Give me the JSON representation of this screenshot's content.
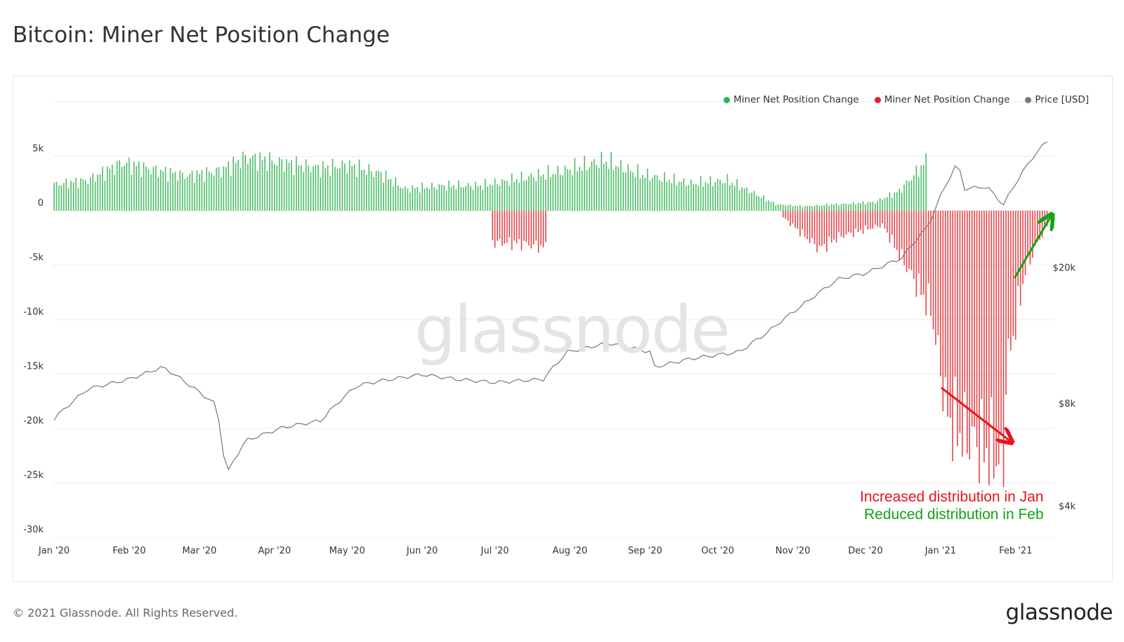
{
  "header": {
    "title": "Bitcoin: Miner Net Position Change"
  },
  "footer": {
    "copyright": "© 2021 Glassnode. All Rights Reserved.",
    "brand": "glassnode"
  },
  "watermark": "glassnode",
  "legend": [
    {
      "label": "Miner Net Position Change",
      "color": "#2bb24c"
    },
    {
      "label": "Miner Net Position Change",
      "color": "#e0252b"
    },
    {
      "label": "Price [USD]",
      "color": "#777777"
    }
  ],
  "annotations": {
    "line1": "Increased distribution in Jan",
    "line2": "Reduced distribution in Feb",
    "line1_color": "#e8141b",
    "line2_color": "#13a313"
  },
  "chart_data": {
    "type": "bar",
    "title": "Bitcoin: Miner Net Position Change",
    "x_ticks": [
      "Jan '20",
      "Feb '20",
      "Mar '20",
      "Apr '20",
      "May '20",
      "Jun '20",
      "Jul '20",
      "Aug '20",
      "Sep '20",
      "Oct '20",
      "Nov '20",
      "Dec '20",
      "Jan '21",
      "Feb '21"
    ],
    "y_ticks": [
      "5k",
      "0",
      "-5k",
      "-10k",
      "-15k",
      "-20k",
      "-25k",
      "-30k"
    ],
    "y_tick_values": [
      5000,
      0,
      -5000,
      -10000,
      -15000,
      -20000,
      -25000,
      -30000
    ],
    "ylim": [
      -30000,
      7500
    ],
    "y2_ticks": [
      "$20k",
      "$8k",
      "$4k"
    ],
    "y2_tick_values": [
      20000,
      8000,
      4000
    ],
    "y2_scale": "log",
    "y2lim": [
      4000,
      50000
    ],
    "grid": true,
    "legend_position": "top-right",
    "series": [
      {
        "name": "Miner Net Position Change",
        "color": "#2bb24c",
        "points": [
          [
            "2020-01-01",
            2400
          ],
          [
            "2020-01-15",
            2800
          ],
          [
            "2020-01-29",
            4400
          ],
          [
            "2020-02-10",
            3800
          ],
          [
            "2020-02-25",
            3200
          ],
          [
            "2020-03-10",
            3700
          ],
          [
            "2020-03-20",
            4900
          ],
          [
            "2020-04-05",
            4400
          ],
          [
            "2020-04-20",
            3900
          ],
          [
            "2020-05-01",
            4200
          ],
          [
            "2020-05-15",
            3400
          ],
          [
            "2020-05-25",
            2000
          ],
          [
            "2020-06-10",
            2300
          ],
          [
            "2020-06-25",
            2300
          ],
          [
            "2020-07-28",
            3600
          ],
          [
            "2020-08-15",
            4600
          ],
          [
            "2020-08-31",
            3300
          ],
          [
            "2020-09-20",
            2500
          ],
          [
            "2020-10-05",
            2800
          ],
          [
            "2020-10-25",
            600
          ],
          [
            "2020-11-05",
            400
          ],
          [
            "2020-12-05",
            800
          ],
          [
            "2020-12-15",
            1800
          ],
          [
            "2020-12-26",
            4500
          ]
        ]
      },
      {
        "name": "Miner Net Position Change",
        "color": "#e0252b",
        "points": [
          [
            "2020-06-30",
            -2900
          ],
          [
            "2020-07-12",
            -3000
          ],
          [
            "2020-07-22",
            -3400
          ],
          [
            "2020-10-28",
            -600
          ],
          [
            "2020-11-12",
            -3500
          ],
          [
            "2020-11-20",
            -2400
          ],
          [
            "2020-12-08",
            -1300
          ],
          [
            "2020-12-28",
            -9000
          ],
          [
            "2021-01-04",
            -19000
          ],
          [
            "2021-01-10",
            -20500
          ],
          [
            "2021-01-17",
            -21500
          ],
          [
            "2021-01-24",
            -22500
          ],
          [
            "2021-01-27",
            -24000
          ],
          [
            "2021-01-28",
            -15000
          ],
          [
            "2021-02-05",
            -5500
          ],
          [
            "2021-02-10",
            -3000
          ],
          [
            "2021-02-14",
            -1300
          ]
        ]
      },
      {
        "name": "Price [USD]",
        "color": "#777777",
        "points": [
          [
            "2020-01-01",
            7200
          ],
          [
            "2020-01-15",
            8800
          ],
          [
            "2020-02-01",
            9400
          ],
          [
            "2020-02-15",
            10200
          ],
          [
            "2020-03-01",
            8600
          ],
          [
            "2020-03-08",
            7900
          ],
          [
            "2020-03-12",
            4900
          ],
          [
            "2020-03-20",
            6200
          ],
          [
            "2020-04-05",
            6800
          ],
          [
            "2020-04-20",
            7100
          ],
          [
            "2020-05-05",
            9000
          ],
          [
            "2020-05-15",
            9300
          ],
          [
            "2020-06-01",
            9700
          ],
          [
            "2020-06-15",
            9400
          ],
          [
            "2020-07-01",
            9200
          ],
          [
            "2020-07-21",
            9400
          ],
          [
            "2020-07-31",
            11300
          ],
          [
            "2020-08-17",
            12000
          ],
          [
            "2020-09-03",
            11300
          ],
          [
            "2020-09-05",
            10200
          ],
          [
            "2020-09-20",
            10800
          ],
          [
            "2020-10-10",
            11300
          ],
          [
            "2020-10-21",
            12800
          ],
          [
            "2020-11-05",
            15500
          ],
          [
            "2020-11-20",
            18500
          ],
          [
            "2020-12-01",
            19200
          ],
          [
            "2020-12-16",
            21300
          ],
          [
            "2020-12-27",
            26500
          ],
          [
            "2021-01-08",
            40500
          ],
          [
            "2021-01-11",
            34000
          ],
          [
            "2021-01-20",
            34500
          ],
          [
            "2021-01-27",
            30500
          ],
          [
            "2021-02-08",
            42000
          ],
          [
            "2021-02-15",
            47800
          ]
        ]
      }
    ]
  }
}
